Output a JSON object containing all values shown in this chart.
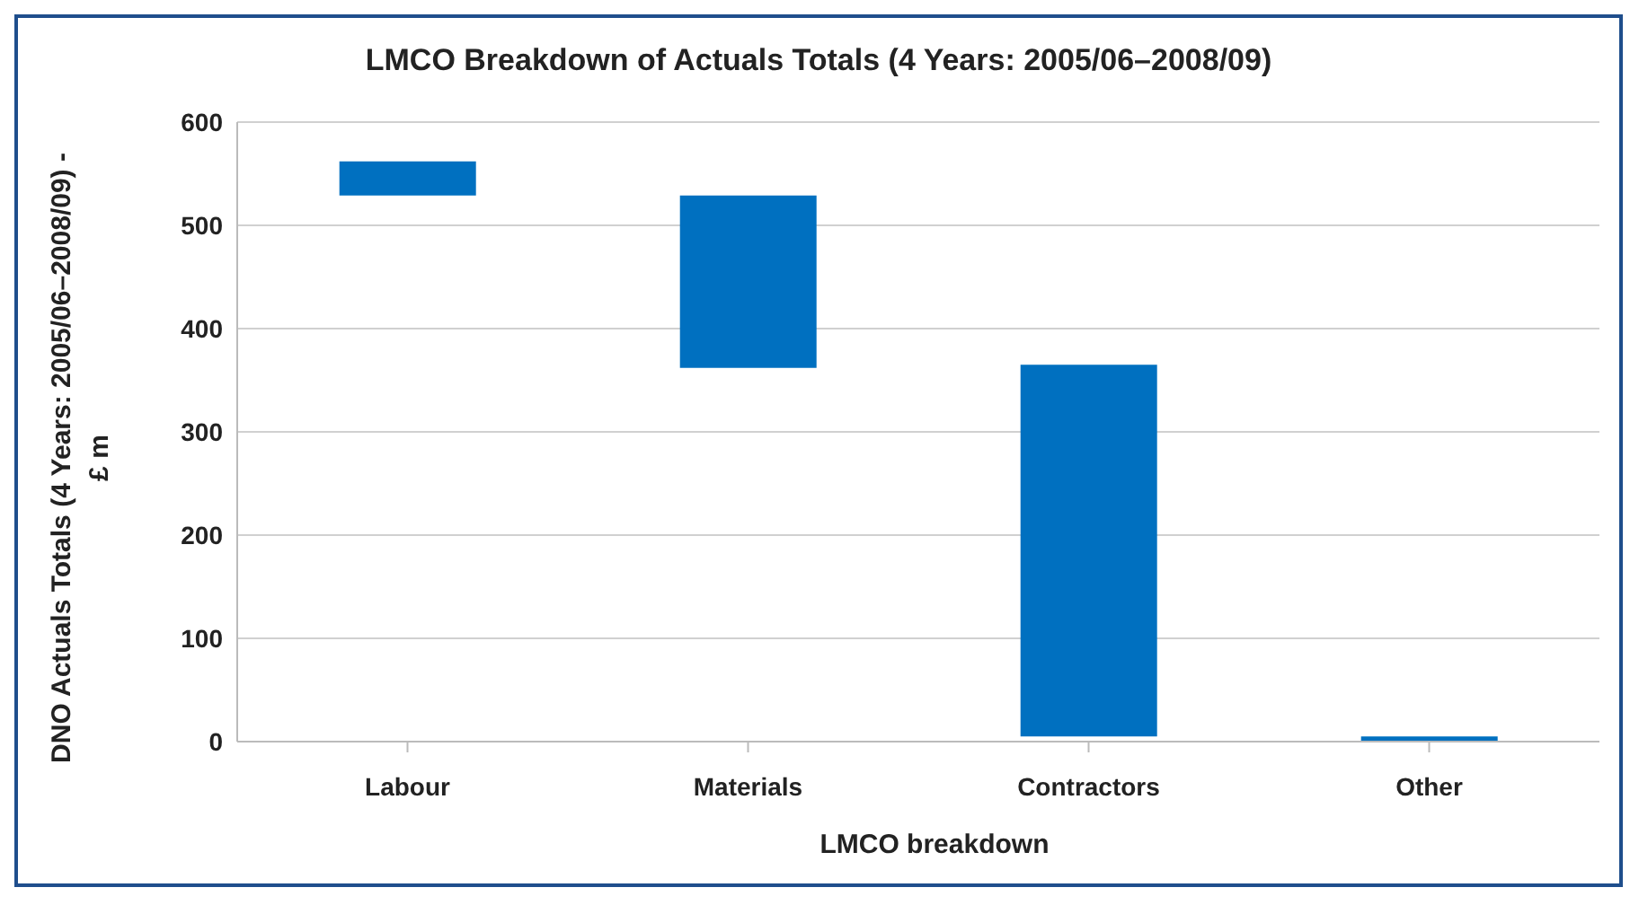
{
  "chart_data": {
    "type": "bar",
    "title": "LMCO Breakdown of Actuals Totals (4 Years: 2005/06–2008/09)",
    "xlabel": "LMCO breakdown",
    "ylabel": "DNO Actuals Totals (4 Years:  2005/06–2008/09) - £ m",
    "categories": [
      "Labour",
      "Materials",
      "Contractors",
      "Other"
    ],
    "values": [
      33,
      167,
      360,
      5
    ],
    "base": [
      529,
      362,
      5,
      0
    ],
    "color": "#0070c0",
    "ylim": [
      0,
      600
    ],
    "yticks": [
      0,
      100,
      200,
      300,
      400,
      500,
      600
    ],
    "grid": "y"
  }
}
